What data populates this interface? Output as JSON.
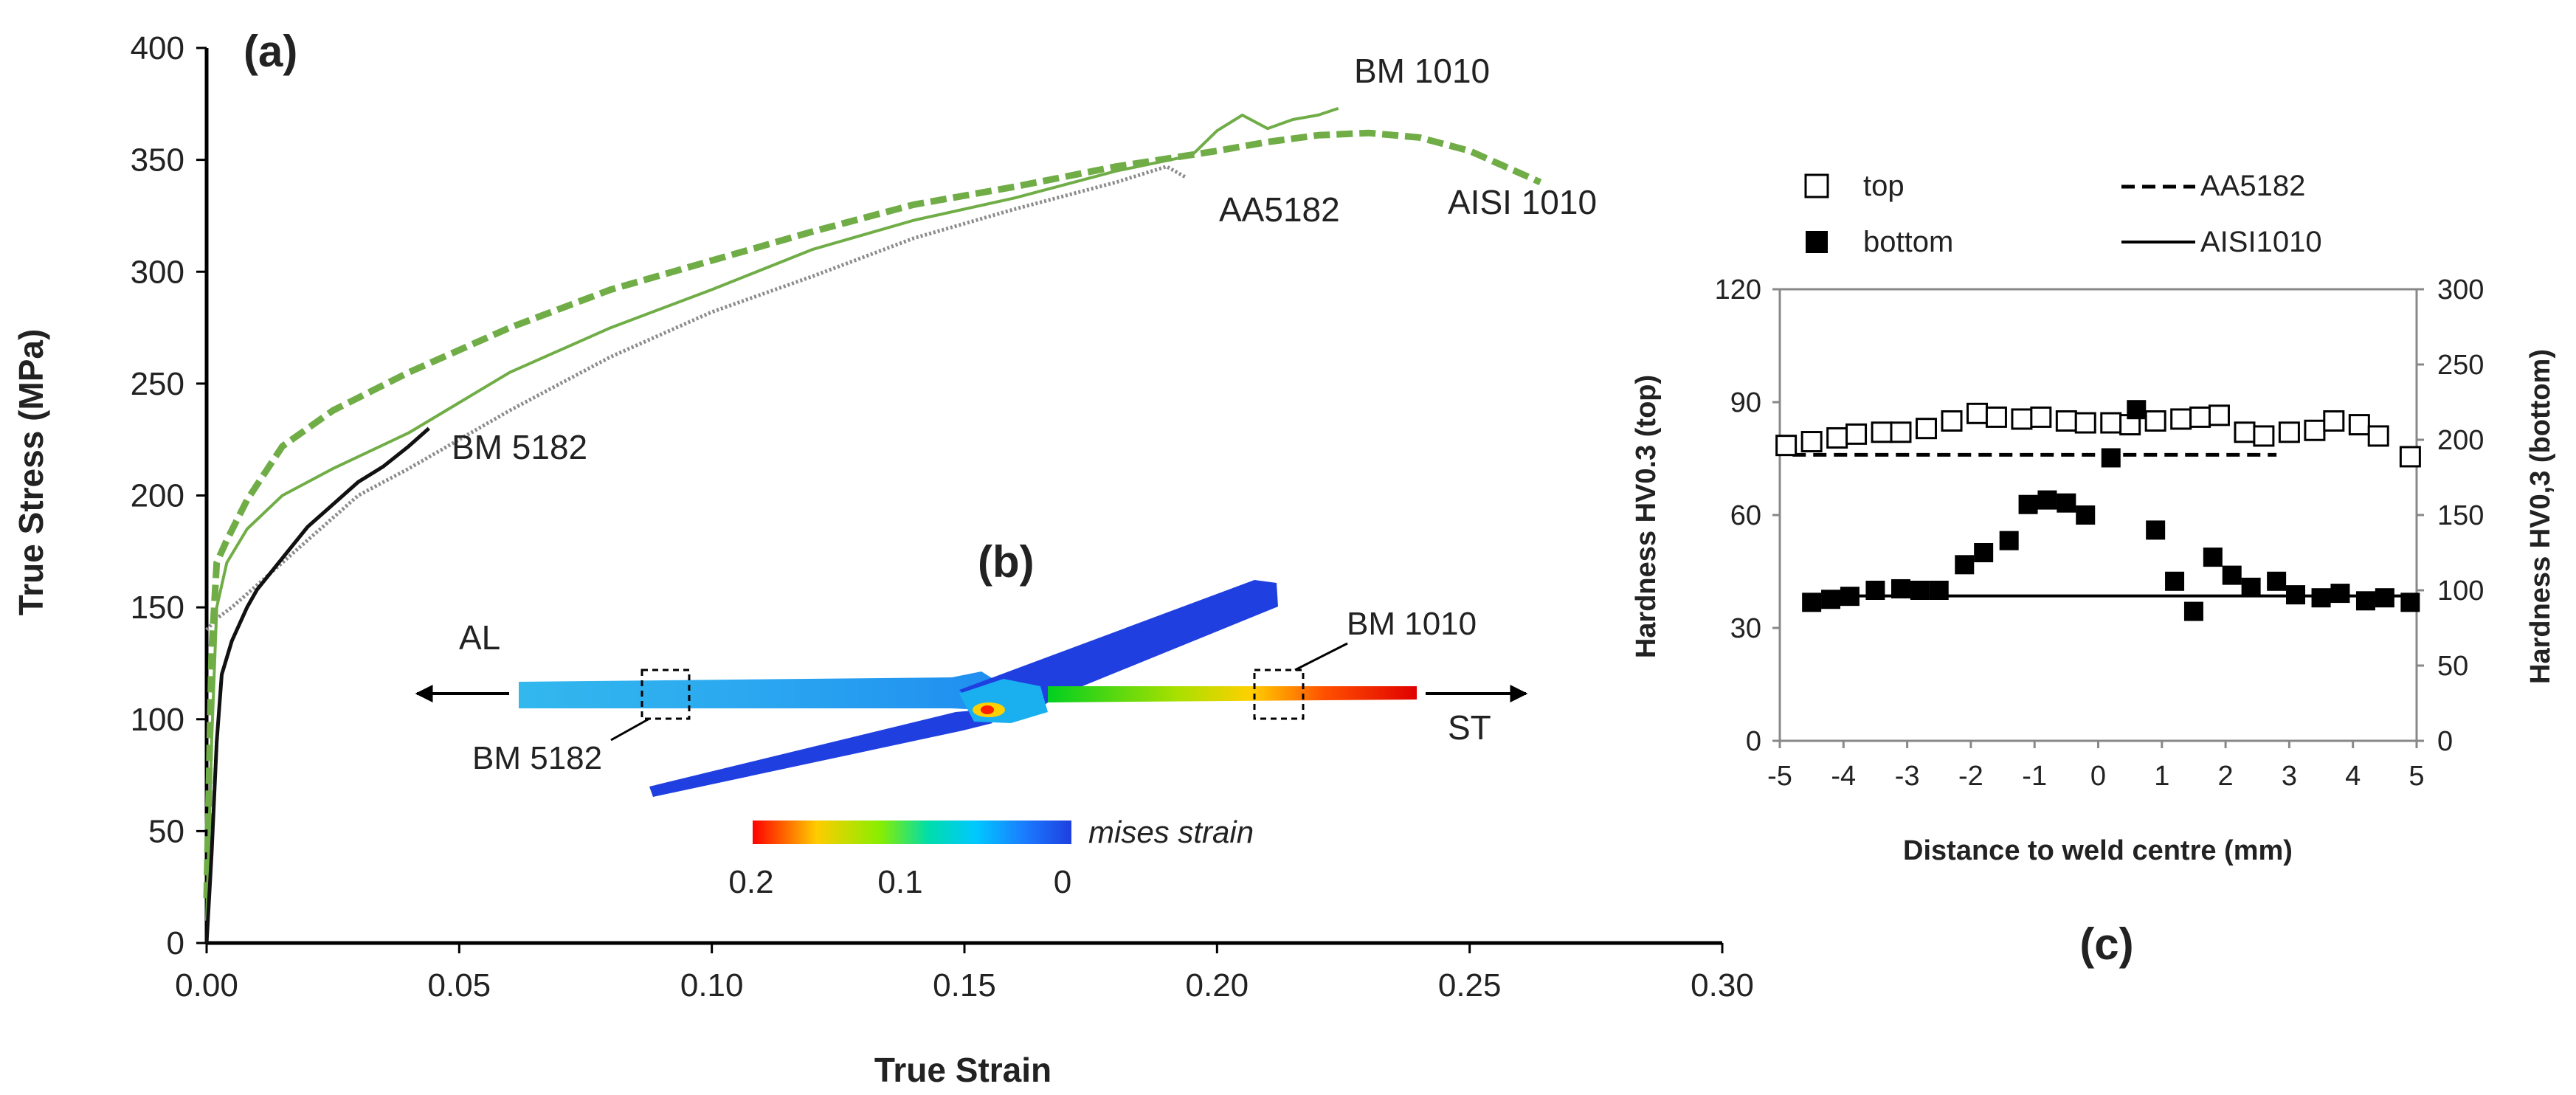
{
  "colors": {
    "green": "#70ad47",
    "gray": "#8c8c8c",
    "black": "#111111",
    "blue": "#1f3fe0"
  },
  "chart_data": [
    {
      "type": "line",
      "panel": "(a)",
      "xlabel": "True Strain",
      "ylabel": "True Stress (MPa)",
      "xlim": [
        0,
        0.3
      ],
      "ylim": [
        0,
        400
      ],
      "x_ticks": [
        "0.00",
        "0.05",
        "0.10",
        "0.15",
        "0.20",
        "0.25",
        "0.30"
      ],
      "y_ticks": [
        "0",
        "50",
        "100",
        "150",
        "200",
        "250",
        "300",
        "350",
        "400"
      ],
      "grid": false,
      "series": [
        {
          "name": "BM 1010",
          "style": "green-solid",
          "x": [
            0.0,
            0.001,
            0.002,
            0.004,
            0.008,
            0.015,
            0.025,
            0.04,
            0.06,
            0.08,
            0.1,
            0.12,
            0.14,
            0.16,
            0.18,
            0.195,
            0.2,
            0.205,
            0.21,
            0.215,
            0.22,
            0.224
          ],
          "y": [
            10,
            90,
            150,
            170,
            185,
            200,
            212,
            228,
            255,
            275,
            292,
            310,
            323,
            333,
            345,
            352,
            363,
            370,
            364,
            368,
            370,
            373
          ]
        },
        {
          "name": "AISI 1010",
          "style": "green-dashed",
          "x": [
            0.0,
            0.001,
            0.002,
            0.004,
            0.008,
            0.015,
            0.025,
            0.04,
            0.06,
            0.08,
            0.1,
            0.12,
            0.14,
            0.16,
            0.18,
            0.2,
            0.21,
            0.22,
            0.23,
            0.24,
            0.25,
            0.26,
            0.264
          ],
          "y": [
            20,
            130,
            170,
            180,
            198,
            222,
            238,
            255,
            275,
            292,
            305,
            318,
            330,
            338,
            347,
            354,
            358,
            361,
            362,
            360,
            354,
            344,
            340
          ]
        },
        {
          "name": "AA5182",
          "style": "gray-dotted",
          "x": [
            0.0,
            0.002,
            0.005,
            0.01,
            0.02,
            0.03,
            0.04,
            0.05,
            0.06,
            0.08,
            0.1,
            0.12,
            0.14,
            0.16,
            0.18,
            0.19,
            0.194
          ],
          "y": [
            140,
            145,
            150,
            160,
            180,
            200,
            212,
            225,
            238,
            262,
            282,
            298,
            315,
            328,
            340,
            347,
            342
          ]
        },
        {
          "name": "BM 5182",
          "style": "black-solid",
          "x": [
            0.0,
            0.001,
            0.002,
            0.003,
            0.005,
            0.008,
            0.01,
            0.015,
            0.02,
            0.025,
            0.03,
            0.035,
            0.04,
            0.043,
            0.044
          ],
          "y": [
            0,
            40,
            90,
            120,
            135,
            150,
            158,
            172,
            186,
            196,
            206,
            213,
            222,
            228,
            230
          ]
        }
      ],
      "annotations": [
        "BM 1010",
        "AA5182",
        "AISI 1010",
        "BM 5182"
      ]
    },
    {
      "type": "scatter",
      "panel": "(c)",
      "xlabel": "Distance to weld centre (mm)",
      "ylabel_left": "Hardness HV0.3 (top)",
      "ylabel_right": "Hardness HV0,3 (bottom)",
      "xlim": [
        -5,
        5
      ],
      "ylim_left": [
        0,
        120
      ],
      "ylim_right": [
        0,
        300
      ],
      "x_ticks": [
        "-5",
        "-4",
        "-3",
        "-2",
        "-1",
        "0",
        "1",
        "2",
        "3",
        "4",
        "5"
      ],
      "y_ticks_left": [
        "0",
        "30",
        "60",
        "90",
        "120"
      ],
      "y_ticks_right": [
        "0",
        "50",
        "100",
        "150",
        "200",
        "250",
        "300"
      ],
      "legend": {
        "top": "top",
        "bottom": "bottom",
        "dashed": "AA5182",
        "solid": "AISI1010"
      },
      "reference_lines": [
        {
          "name": "AA5182",
          "style": "dashed",
          "axis": "left",
          "value": 76,
          "x_range": [
            -4.8,
            2.8
          ]
        },
        {
          "name": "AISI1010",
          "style": "solid",
          "axis": "left",
          "value": 38.5,
          "x_range": [
            -4.5,
            5
          ]
        }
      ],
      "series": [
        {
          "name": "top",
          "marker": "open-square",
          "axis": "left",
          "x": [
            -4.9,
            -4.5,
            -4.1,
            -3.8,
            -3.4,
            -3.1,
            -2.7,
            -2.3,
            -1.9,
            -1.6,
            -1.2,
            -0.9,
            -0.5,
            -0.2,
            0.2,
            0.5,
            0.9,
            1.3,
            1.6,
            1.9,
            2.3,
            2.6,
            3.0,
            3.4,
            3.7,
            4.1,
            4.4,
            4.9
          ],
          "y": [
            78.5,
            79.5,
            80.5,
            81.5,
            82,
            82,
            83,
            85,
            87,
            86,
            85.5,
            86,
            85,
            84.5,
            84.5,
            84,
            85,
            85.5,
            86,
            86.5,
            82,
            81,
            82,
            82.5,
            85,
            84,
            81,
            75.5
          ]
        },
        {
          "name": "bottom",
          "marker": "filled-square",
          "axis": "right",
          "x": [
            -4.5,
            -4.2,
            -3.9,
            -3.5,
            -3.1,
            -2.8,
            -2.5,
            -2.1,
            -1.8,
            -1.4,
            -1.1,
            -0.8,
            -0.5,
            -0.2,
            0.2,
            0.6,
            0.9,
            1.2,
            1.5,
            1.8,
            2.1,
            2.4,
            2.8,
            3.1,
            3.5,
            3.8,
            4.2,
            4.5,
            4.9
          ],
          "y": [
            92,
            94,
            96,
            100,
            101,
            100,
            100,
            117,
            125,
            133,
            157,
            160,
            158,
            150,
            188,
            220,
            140,
            106,
            86,
            122,
            110,
            102,
            106,
            97,
            95,
            98,
            93,
            95,
            92
          ]
        }
      ]
    }
  ],
  "panel_b": {
    "label": "(b)",
    "left_arrow_label": "AL",
    "right_arrow_label": "ST",
    "callout_left": "BM 5182",
    "callout_right": "BM 1010",
    "colorbar_title": "mises strain",
    "colorbar_ticks": [
      "0.2",
      "0.1",
      "0"
    ]
  }
}
